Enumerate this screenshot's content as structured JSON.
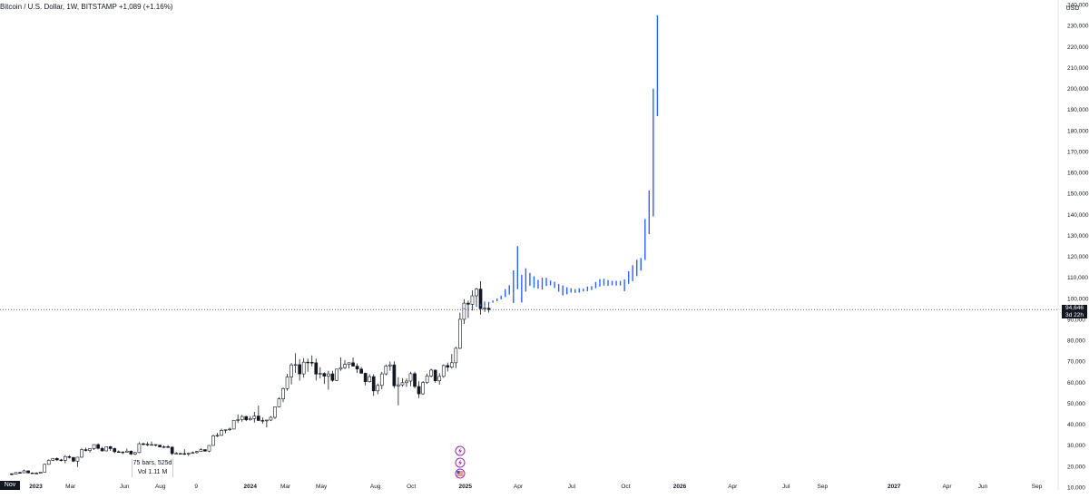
{
  "header": {
    "symbol": "Bitcoin / U.S. Dollar, 1W, BITSTAMP",
    "change": "+1,089 (+1.16%)"
  },
  "currency_label": "USD",
  "current_price": {
    "value": "94,646",
    "countdown": "3d 22h"
  },
  "crosshair_date": "Nov '22",
  "range_tooltip": {
    "bars": "75 bars, 525d",
    "vol": "Vol 1.11 M"
  },
  "event_icons": [
    "lightning-icon",
    "lightning-icon",
    "us-flag-icon"
  ],
  "colors": {
    "candle_body": "#131722",
    "projection": "#2962ff",
    "event_icon": "#9c27b0",
    "axis_text": "#131722"
  },
  "chart_data": {
    "type": "candlestick",
    "title": "Bitcoin / U.S. Dollar, 1W, BITSTAMP",
    "ylim": [
      10000,
      240000
    ],
    "yticks": [
      10000,
      20000,
      30000,
      40000,
      50000,
      60000,
      70000,
      80000,
      90000,
      100000,
      110000,
      120000,
      130000,
      140000,
      150000,
      160000,
      170000,
      180000,
      190000,
      200000,
      210000,
      220000,
      230000,
      240000
    ],
    "ytick_labels": [
      "10,000",
      "20,000",
      "30,000",
      "40,000",
      "50,000",
      "60,000",
      "70,000",
      "80,000",
      "90,000",
      "100,000",
      "110,000",
      "120,000",
      "130,000",
      "140,000",
      "150,000",
      "160,000",
      "170,000",
      "180,000",
      "190,000",
      "200,000",
      "210,000",
      "220,000",
      "230,000",
      "240,000"
    ],
    "x_range": [
      "2022-11-01",
      "2027-10-01"
    ],
    "xticks": [
      {
        "date": "2023-01-01",
        "label": "2023",
        "bold": true
      },
      {
        "date": "2023-03-01",
        "label": "Mar",
        "bold": false
      },
      {
        "date": "2023-06-01",
        "label": "Jun",
        "bold": false
      },
      {
        "date": "2023-08-01",
        "label": "Aug",
        "bold": false
      },
      {
        "date": "2023-10-01",
        "label": "9",
        "bold": false
      },
      {
        "date": "2024-01-01",
        "label": "2024",
        "bold": true
      },
      {
        "date": "2024-03-01",
        "label": "Mar",
        "bold": false
      },
      {
        "date": "2024-05-01",
        "label": "May",
        "bold": false
      },
      {
        "date": "2024-08-01",
        "label": "Aug",
        "bold": false
      },
      {
        "date": "2024-10-01",
        "label": "Oct",
        "bold": false
      },
      {
        "date": "2025-01-01",
        "label": "2025",
        "bold": true
      },
      {
        "date": "2025-04-01",
        "label": "Apr",
        "bold": false
      },
      {
        "date": "2025-07-01",
        "label": "Jul",
        "bold": false
      },
      {
        "date": "2025-10-01",
        "label": "Oct",
        "bold": false
      },
      {
        "date": "2026-01-01",
        "label": "2026",
        "bold": true
      },
      {
        "date": "2026-04-01",
        "label": "Apr",
        "bold": false
      },
      {
        "date": "2026-07-01",
        "label": "Jul",
        "bold": false
      },
      {
        "date": "2026-09-01",
        "label": "Sep",
        "bold": false
      },
      {
        "date": "2027-01-01",
        "label": "2027",
        "bold": true
      },
      {
        "date": "2027-04-01",
        "label": "Apr",
        "bold": false
      },
      {
        "date": "2027-06-01",
        "label": "Jun",
        "bold": false
      },
      {
        "date": "2027-09-01",
        "label": "Sep",
        "bold": false
      }
    ],
    "last_price": 94646,
    "grid": false,
    "series": [
      {
        "name": "",
        "kind": "candles",
        "start": "2022-11-21",
        "ohlc": [
          [
            16400,
            16600,
            15700,
            16200
          ],
          [
            16200,
            17200,
            16100,
            17000
          ],
          [
            17000,
            17400,
            16800,
            16900
          ],
          [
            16900,
            18400,
            16700,
            17800
          ],
          [
            17800,
            18000,
            16600,
            16800
          ],
          [
            16800,
            17000,
            16500,
            16700
          ],
          [
            16700,
            17100,
            16500,
            16600
          ],
          [
            16600,
            17400,
            16500,
            17200
          ],
          [
            17200,
            21200,
            17100,
            20900
          ],
          [
            20900,
            23300,
            20700,
            22800
          ],
          [
            22800,
            23900,
            22500,
            23700
          ],
          [
            23700,
            24200,
            22600,
            23000
          ],
          [
            23000,
            23500,
            22300,
            22800
          ],
          [
            22800,
            25200,
            21400,
            24600
          ],
          [
            24600,
            25300,
            23700,
            24200
          ],
          [
            24200,
            24300,
            22000,
            22400
          ],
          [
            22400,
            24500,
            19600,
            24300
          ],
          [
            24300,
            28500,
            24000,
            27900
          ],
          [
            27900,
            28800,
            27000,
            27500
          ],
          [
            27500,
            28600,
            26600,
            28400
          ],
          [
            28400,
            30400,
            27700,
            30300
          ],
          [
            30300,
            30900,
            28000,
            28500
          ],
          [
            28500,
            29200,
            27000,
            27300
          ],
          [
            27300,
            29500,
            27100,
            29300
          ],
          [
            29300,
            29700,
            27300,
            28400
          ],
          [
            28400,
            28900,
            26200,
            26900
          ],
          [
            26900,
            27500,
            26600,
            26800
          ],
          [
            26800,
            27000,
            25800,
            26700
          ],
          [
            26700,
            28400,
            26600,
            27200
          ],
          [
            27200,
            27500,
            25400,
            25800
          ],
          [
            25800,
            26800,
            25300,
            26500
          ],
          [
            26500,
            31400,
            26200,
            30700
          ],
          [
            30700,
            31300,
            29900,
            30500
          ],
          [
            30500,
            31500,
            29600,
            30200
          ],
          [
            30200,
            31800,
            29900,
            30300
          ],
          [
            30300,
            30400,
            29500,
            30000
          ],
          [
            30000,
            30300,
            28900,
            29200
          ],
          [
            29200,
            29900,
            28600,
            29300
          ],
          [
            29300,
            30100,
            28700,
            29100
          ],
          [
            29100,
            29400,
            25300,
            26000
          ],
          [
            26000,
            26800,
            25800,
            26100
          ],
          [
            26100,
            26300,
            25700,
            26000
          ],
          [
            26000,
            28100,
            25400,
            25800
          ],
          [
            25800,
            26500,
            24900,
            26200
          ],
          [
            26200,
            27000,
            26100,
            26500
          ],
          [
            26500,
            27300,
            26000,
            27000
          ],
          [
            27000,
            28600,
            26900,
            27900
          ],
          [
            27900,
            28100,
            26900,
            27200
          ],
          [
            27200,
            30000,
            26700,
            29900
          ],
          [
            29900,
            35100,
            29800,
            34500
          ],
          [
            34500,
            35900,
            33900,
            34700
          ],
          [
            34700,
            37900,
            34500,
            37100
          ],
          [
            37100,
            37400,
            35700,
            37400
          ],
          [
            37400,
            38400,
            36800,
            37700
          ],
          [
            37700,
            42000,
            37600,
            41900
          ],
          [
            41900,
            44700,
            40600,
            42200
          ],
          [
            42200,
            44400,
            41200,
            43700
          ],
          [
            43700,
            44000,
            41500,
            42100
          ],
          [
            42100,
            43900,
            41700,
            42700
          ],
          [
            42700,
            45900,
            40800,
            43900
          ],
          [
            43900,
            48900,
            41500,
            41800
          ],
          [
            41800,
            43200,
            40300,
            41600
          ],
          [
            41600,
            42200,
            38500,
            42000
          ],
          [
            42000,
            43900,
            41500,
            43300
          ],
          [
            43300,
            48400,
            42400,
            48300
          ],
          [
            48300,
            52800,
            48100,
            52100
          ],
          [
            52100,
            57500,
            50600,
            57000
          ],
          [
            57000,
            64000,
            56000,
            62500
          ],
          [
            62500,
            69200,
            59000,
            68300
          ],
          [
            68300,
            73800,
            64500,
            68400
          ],
          [
            68400,
            71000,
            60800,
            64000
          ],
          [
            64000,
            71500,
            62200,
            69600
          ],
          [
            69600,
            71300,
            65000,
            69500
          ],
          [
            69500,
            72800,
            67600,
            69300
          ],
          [
            69300,
            71300,
            60800,
            63900
          ],
          [
            63900,
            67200,
            61800,
            64200
          ],
          [
            64200,
            64800,
            59200,
            62900
          ],
          [
            62900,
            65500,
            56500,
            64000
          ],
          [
            64000,
            65500,
            60200,
            60900
          ],
          [
            60900,
            66400,
            60600,
            66300
          ],
          [
            66300,
            71900,
            65500,
            67000
          ],
          [
            67000,
            70600,
            66300,
            68500
          ],
          [
            68500,
            69500,
            66600,
            69300
          ],
          [
            69300,
            71800,
            67600,
            67700
          ],
          [
            67700,
            69000,
            64500,
            66300
          ],
          [
            66300,
            67300,
            64100,
            64300
          ],
          [
            64300,
            64600,
            58500,
            60300
          ],
          [
            60300,
            63800,
            59900,
            62700
          ],
          [
            62700,
            63800,
            53500,
            55900
          ],
          [
            55900,
            59400,
            54300,
            58500
          ],
          [
            58500,
            65000,
            56700,
            64000
          ],
          [
            64000,
            68500,
            63300,
            67800
          ],
          [
            67800,
            69900,
            65500,
            68300
          ],
          [
            68300,
            70000,
            57200,
            58300
          ],
          [
            58300,
            62400,
            49000,
            58800
          ],
          [
            58800,
            62000,
            57900,
            59800
          ],
          [
            59800,
            61800,
            57800,
            60600
          ],
          [
            60600,
            65000,
            58100,
            64100
          ],
          [
            64100,
            65000,
            57100,
            58000
          ],
          [
            58000,
            60500,
            52500,
            54500
          ],
          [
            54500,
            60600,
            54000,
            59900
          ],
          [
            59900,
            64100,
            59200,
            63000
          ],
          [
            63000,
            66500,
            62400,
            65800
          ],
          [
            65800,
            66100,
            59800,
            60700
          ],
          [
            60700,
            64300,
            58900,
            62800
          ],
          [
            62800,
            68500,
            62200,
            68000
          ],
          [
            68000,
            69400,
            65100,
            67200
          ],
          [
            67200,
            73500,
            66500,
            69300
          ],
          [
            69300,
            76900,
            66800,
            76200
          ],
          [
            76200,
            93200,
            75800,
            90000
          ],
          [
            90000,
            99600,
            87800,
            97700
          ],
          [
            97700,
            98900,
            90700,
            97200
          ],
          [
            97200,
            103800,
            94200,
            101200
          ],
          [
            101200,
            105000,
            96600,
            104400
          ],
          [
            104400,
            108200,
            92200,
            95100
          ],
          [
            95100,
            98500,
            93500,
            95300
          ],
          [
            95300,
            98200,
            93200,
            94646
          ]
        ]
      },
      {
        "name": "",
        "kind": "projection",
        "start": "2024-12-30",
        "hl": [
          [
            94800,
            95300
          ],
          [
            95100,
            95700
          ],
          [
            95600,
            96100
          ],
          [
            96000,
            96600
          ],
          [
            96400,
            97100
          ],
          [
            96900,
            97700
          ],
          [
            97400,
            98300
          ],
          [
            97900,
            99000
          ],
          [
            98600,
            99900
          ],
          [
            99500,
            101300
          ],
          [
            100600,
            104400
          ],
          [
            101800,
            106300
          ],
          [
            97800,
            113300
          ],
          [
            104400,
            124900
          ],
          [
            98000,
            111200
          ],
          [
            103200,
            114300
          ],
          [
            106000,
            112100
          ],
          [
            105000,
            110500
          ],
          [
            104600,
            108800
          ],
          [
            104200,
            109800
          ],
          [
            105900,
            109800
          ],
          [
            106200,
            108500
          ],
          [
            104900,
            107900
          ],
          [
            103200,
            106800
          ],
          [
            101400,
            106100
          ],
          [
            101900,
            105300
          ],
          [
            102700,
            104800
          ],
          [
            102600,
            104400
          ],
          [
            102800,
            104800
          ],
          [
            103300,
            104600
          ],
          [
            103400,
            105600
          ],
          [
            104000,
            105800
          ],
          [
            104800,
            107800
          ],
          [
            105600,
            109200
          ],
          [
            106100,
            109300
          ],
          [
            106000,
            108700
          ],
          [
            106200,
            108300
          ],
          [
            106100,
            108300
          ],
          [
            106100,
            108300
          ],
          [
            103400,
            109000
          ],
          [
            106900,
            112900
          ],
          [
            108200,
            115800
          ],
          [
            110600,
            118400
          ],
          [
            113200,
            119200
          ],
          [
            118300,
            137800
          ],
          [
            130600,
            151400
          ],
          [
            139000,
            199900
          ],
          [
            186800,
            234900
          ]
        ]
      }
    ]
  }
}
